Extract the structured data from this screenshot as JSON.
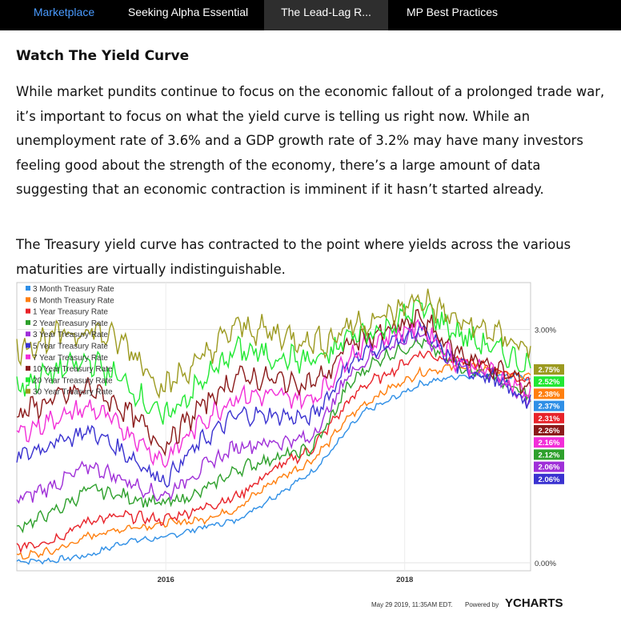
{
  "nav": {
    "tabs": [
      {
        "label": "Marketplace"
      },
      {
        "label": "Seeking Alpha Essential"
      },
      {
        "label": "The Lead-Lag R..."
      },
      {
        "label": "MP Best Practices"
      }
    ],
    "active_index": 2
  },
  "article": {
    "heading": "Watch The Yield Curve",
    "paragraph1": "While market pundits continue to focus on the economic fallout of a prolonged trade war, it’s important to focus on what the yield curve is telling us right now. While an unemployment rate of 3.6% and a GDP growth rate of 3.2% may have many investors feeling good about the strength of the economy, there’s a large amount of data suggesting that an economic contraction is imminent if it hasn’t started already.",
    "paragraph2": "The Treasury yield curve has contracted to the point where yields across the various maturities are virtually indistinguishable."
  },
  "chart_data": {
    "type": "line",
    "xlabel": "",
    "ylabel": "",
    "x_ticks": [
      "2016",
      "2018"
    ],
    "y_ticks": [
      "0.00%",
      "3.00%"
    ],
    "ylim": [
      0,
      3.5
    ],
    "legend_position": "top-left",
    "footer": "May 29 2019, 11:35AM EDT.",
    "powered_by": "Powered by",
    "brand": "YCHARTS",
    "series": [
      {
        "name": "3 Month Treasury Rate",
        "color": "#2f8fe6",
        "last_label": "2.37%",
        "last": 2.37,
        "points": [
          [
            0,
            0.02
          ],
          [
            0.1,
            0.03
          ],
          [
            0.2,
            0.1
          ],
          [
            0.3,
            0.28
          ],
          [
            0.4,
            0.32
          ],
          [
            0.5,
            0.45
          ],
          [
            0.6,
            0.55
          ],
          [
            0.7,
            0.85
          ],
          [
            0.8,
            1.15
          ],
          [
            0.85,
            1.4
          ],
          [
            0.9,
            1.7
          ],
          [
            0.95,
            1.95
          ],
          [
            1.0,
            2.05
          ],
          [
            1.1,
            2.3
          ],
          [
            1.2,
            2.4
          ],
          [
            1.3,
            2.43
          ],
          [
            1.4,
            2.37
          ]
        ]
      },
      {
        "name": "6 Month Treasury Rate",
        "color": "#ff7f0e",
        "last_label": "2.38%",
        "last": 2.38,
        "points": [
          [
            0,
            0.07
          ],
          [
            0.1,
            0.15
          ],
          [
            0.2,
            0.35
          ],
          [
            0.3,
            0.45
          ],
          [
            0.4,
            0.5
          ],
          [
            0.5,
            0.55
          ],
          [
            0.6,
            0.7
          ],
          [
            0.7,
            1.05
          ],
          [
            0.8,
            1.3
          ],
          [
            0.85,
            1.55
          ],
          [
            0.9,
            1.85
          ],
          [
            0.95,
            2.05
          ],
          [
            1.0,
            2.2
          ],
          [
            1.1,
            2.45
          ],
          [
            1.2,
            2.53
          ],
          [
            1.3,
            2.47
          ],
          [
            1.4,
            2.38
          ]
        ]
      },
      {
        "name": "1 Year Treasury Rate",
        "color": "#e8232a",
        "last_label": "2.31%",
        "last": 2.31,
        "points": [
          [
            0,
            0.2
          ],
          [
            0.1,
            0.3
          ],
          [
            0.2,
            0.55
          ],
          [
            0.3,
            0.6
          ],
          [
            0.4,
            0.55
          ],
          [
            0.5,
            0.7
          ],
          [
            0.6,
            0.85
          ],
          [
            0.7,
            1.2
          ],
          [
            0.8,
            1.45
          ],
          [
            0.85,
            1.75
          ],
          [
            0.9,
            2.05
          ],
          [
            0.95,
            2.3
          ],
          [
            1.0,
            2.4
          ],
          [
            1.1,
            2.7
          ],
          [
            1.2,
            2.6
          ],
          [
            1.3,
            2.5
          ],
          [
            1.4,
            2.31
          ]
        ]
      },
      {
        "name": "2 Year Treasury Rate",
        "color": "#2ea02c",
        "last_label": "2.12%",
        "last": 2.12,
        "points": [
          [
            0,
            0.45
          ],
          [
            0.1,
            0.65
          ],
          [
            0.2,
            0.95
          ],
          [
            0.3,
            0.85
          ],
          [
            0.4,
            0.75
          ],
          [
            0.5,
            0.9
          ],
          [
            0.6,
            1.2
          ],
          [
            0.7,
            1.35
          ],
          [
            0.8,
            1.45
          ],
          [
            0.85,
            1.8
          ],
          [
            0.9,
            2.25
          ],
          [
            0.95,
            2.5
          ],
          [
            1.0,
            2.65
          ],
          [
            1.1,
            2.85
          ],
          [
            1.2,
            2.55
          ],
          [
            1.3,
            2.4
          ],
          [
            1.4,
            2.12
          ]
        ]
      },
      {
        "name": "3 Year Treasury Rate",
        "color": "#9f2fd8",
        "last_label": "2.06%",
        "last": 2.06,
        "points": [
          [
            0,
            0.8
          ],
          [
            0.1,
            1.0
          ],
          [
            0.2,
            1.25
          ],
          [
            0.3,
            1.05
          ],
          [
            0.4,
            0.85
          ],
          [
            0.5,
            1.2
          ],
          [
            0.6,
            1.5
          ],
          [
            0.7,
            1.55
          ],
          [
            0.8,
            1.6
          ],
          [
            0.85,
            1.95
          ],
          [
            0.9,
            2.4
          ],
          [
            0.95,
            2.6
          ],
          [
            1.0,
            2.75
          ],
          [
            1.1,
            2.95
          ],
          [
            1.2,
            2.55
          ],
          [
            1.3,
            2.4
          ],
          [
            1.4,
            2.06
          ]
        ]
      },
      {
        "name": "5 Year Treasury Rate",
        "color": "#3a32d0",
        "last_label": "2.06%",
        "last": 2.06,
        "points": [
          [
            0,
            1.35
          ],
          [
            0.1,
            1.55
          ],
          [
            0.2,
            1.7
          ],
          [
            0.3,
            1.4
          ],
          [
            0.4,
            1.05
          ],
          [
            0.5,
            1.55
          ],
          [
            0.6,
            1.9
          ],
          [
            0.7,
            1.9
          ],
          [
            0.8,
            1.85
          ],
          [
            0.85,
            2.15
          ],
          [
            0.9,
            2.55
          ],
          [
            0.95,
            2.7
          ],
          [
            1.0,
            2.8
          ],
          [
            1.1,
            3.0
          ],
          [
            1.2,
            2.55
          ],
          [
            1.3,
            2.35
          ],
          [
            1.4,
            2.06
          ]
        ]
      },
      {
        "name": "7 Year Treasury Rate",
        "color": "#f22ed8",
        "last_label": "2.16%",
        "last": 2.16,
        "points": [
          [
            0,
            1.65
          ],
          [
            0.1,
            1.85
          ],
          [
            0.2,
            2.0
          ],
          [
            0.3,
            1.7
          ],
          [
            0.4,
            1.3
          ],
          [
            0.5,
            1.8
          ],
          [
            0.6,
            2.15
          ],
          [
            0.7,
            2.15
          ],
          [
            0.8,
            2.1
          ],
          [
            0.85,
            2.3
          ],
          [
            0.9,
            2.65
          ],
          [
            0.95,
            2.8
          ],
          [
            1.0,
            2.9
          ],
          [
            1.1,
            3.05
          ],
          [
            1.2,
            2.6
          ],
          [
            1.3,
            2.45
          ],
          [
            1.4,
            2.16
          ]
        ]
      },
      {
        "name": "10 Year Treasury Rate",
        "color": "#8b1a1a",
        "last_label": "2.26%",
        "last": 2.26,
        "points": [
          [
            0,
            1.9
          ],
          [
            0.1,
            2.1
          ],
          [
            0.2,
            2.25
          ],
          [
            0.3,
            1.95
          ],
          [
            0.4,
            1.5
          ],
          [
            0.5,
            2.0
          ],
          [
            0.6,
            2.4
          ],
          [
            0.7,
            2.35
          ],
          [
            0.8,
            2.3
          ],
          [
            0.85,
            2.45
          ],
          [
            0.9,
            2.8
          ],
          [
            0.95,
            2.9
          ],
          [
            1.0,
            2.95
          ],
          [
            1.1,
            3.15
          ],
          [
            1.2,
            2.7
          ],
          [
            1.3,
            2.5
          ],
          [
            1.4,
            2.26
          ]
        ]
      },
      {
        "name": "20 Year Treasury Rate",
        "color": "#22e834",
        "last_label": "2.52%",
        "last": 2.52,
        "points": [
          [
            0,
            2.25
          ],
          [
            0.1,
            2.45
          ],
          [
            0.2,
            2.6
          ],
          [
            0.3,
            2.3
          ],
          [
            0.4,
            1.85
          ],
          [
            0.5,
            2.3
          ],
          [
            0.6,
            2.75
          ],
          [
            0.7,
            2.65
          ],
          [
            0.8,
            2.6
          ],
          [
            0.85,
            2.65
          ],
          [
            0.9,
            2.9
          ],
          [
            0.95,
            2.95
          ],
          [
            1.0,
            3.0
          ],
          [
            1.1,
            3.3
          ],
          [
            1.2,
            2.95
          ],
          [
            1.3,
            2.75
          ],
          [
            1.4,
            2.52
          ]
        ]
      },
      {
        "name": "30 Year Treasury Rate",
        "color": "#9c9a20",
        "last_label": "2.75%",
        "last": 2.75,
        "points": [
          [
            0,
            2.75
          ],
          [
            0.1,
            2.9
          ],
          [
            0.2,
            3.0
          ],
          [
            0.3,
            2.8
          ],
          [
            0.4,
            2.25
          ],
          [
            0.5,
            2.6
          ],
          [
            0.6,
            3.05
          ],
          [
            0.7,
            2.95
          ],
          [
            0.8,
            2.85
          ],
          [
            0.85,
            2.85
          ],
          [
            0.9,
            3.05
          ],
          [
            0.95,
            3.1
          ],
          [
            1.0,
            3.15
          ],
          [
            1.1,
            3.4
          ],
          [
            1.2,
            3.1
          ],
          [
            1.3,
            2.95
          ],
          [
            1.4,
            2.75
          ]
        ]
      }
    ],
    "label_order": [
      9,
      8,
      1,
      0,
      2,
      7,
      6,
      3,
      4,
      5
    ]
  }
}
